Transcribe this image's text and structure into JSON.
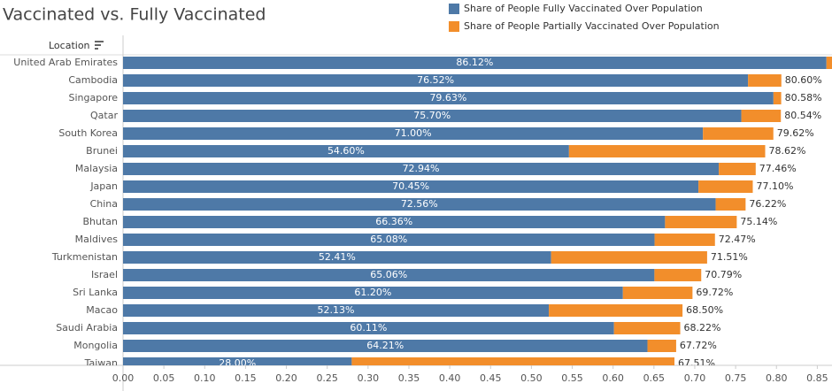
{
  "chart_data": {
    "type": "stacked-bar-horizontal",
    "title": "Vaccinated vs. Fully Vaccinated",
    "y_axis_title": "Location",
    "categories": [
      "United Arab Emirates",
      "Cambodia",
      "Singapore",
      "Qatar",
      "South Korea",
      "Brunei",
      "Malaysia",
      "Japan",
      "China",
      "Bhutan",
      "Maldives",
      "Turkmenistan",
      "Israel",
      "Sri Lanka",
      "Macao",
      "Saudi Arabia",
      "Mongolia",
      "Taiwan"
    ],
    "series": [
      {
        "name": "Share of People Fully Vaccinated Over Population",
        "color": "#4e79a7",
        "values": [
          0.8612,
          0.7652,
          0.7963,
          0.757,
          0.71,
          0.546,
          0.7294,
          0.7045,
          0.7256,
          0.6636,
          0.6508,
          0.5241,
          0.6506,
          0.612,
          0.5213,
          0.6011,
          0.6421,
          0.28
        ],
        "value_labels": [
          "86.12%",
          "76.52%",
          "79.63%",
          "75.70%",
          "71.00%",
          "54.60%",
          "72.94%",
          "70.45%",
          "72.56%",
          "66.36%",
          "65.08%",
          "52.41%",
          "65.06%",
          "61.20%",
          "52.13%",
          "60.11%",
          "64.21%",
          "28.00%"
        ]
      },
      {
        "name": "Share of People Partially Vaccinated Over Population",
        "color": "#f28e2b",
        "values": [
          0.01,
          0.0408,
          0.0095,
          0.0484,
          0.0862,
          0.2402,
          0.0452,
          0.0665,
          0.0366,
          0.0878,
          0.0739,
          0.191,
          0.0573,
          0.0852,
          0.1637,
          0.0811,
          0.0351,
          0.3951
        ]
      }
    ],
    "totals": {
      "values": [
        null,
        0.806,
        0.8058,
        0.8054,
        0.7962,
        0.7862,
        0.7746,
        0.771,
        0.7622,
        0.7514,
        0.7247,
        0.7151,
        0.7079,
        0.6972,
        0.685,
        0.6822,
        0.6772,
        0.6751
      ],
      "value_labels": [
        null,
        "80.60%",
        "80.58%",
        "80.54%",
        "79.62%",
        "78.62%",
        "77.46%",
        "77.10%",
        "76.22%",
        "75.14%",
        "72.47%",
        "71.51%",
        "70.79%",
        "69.72%",
        "68.50%",
        "68.22%",
        "67.72%",
        "67.51%"
      ]
    },
    "xlim": [
      0,
      0.868
    ],
    "xticks": [
      {
        "value": 0,
        "label": "0.00"
      },
      {
        "value": 0.05,
        "label": "0.05"
      },
      {
        "value": 0.1,
        "label": "0.10"
      },
      {
        "value": 0.15,
        "label": "0.15"
      },
      {
        "value": 0.2,
        "label": "0.20"
      },
      {
        "value": 0.25,
        "label": "0.25"
      },
      {
        "value": 0.3,
        "label": "0.30"
      },
      {
        "value": 0.35,
        "label": "0.35"
      },
      {
        "value": 0.4,
        "label": "0.40"
      },
      {
        "value": 0.45,
        "label": "0.45"
      },
      {
        "value": 0.5,
        "label": "0.50"
      },
      {
        "value": 0.55,
        "label": "0.55"
      },
      {
        "value": 0.6,
        "label": "0.60"
      },
      {
        "value": 0.65,
        "label": "0.65"
      },
      {
        "value": 0.7,
        "label": "0.70"
      },
      {
        "value": 0.75,
        "label": "0.75"
      },
      {
        "value": 0.8,
        "label": "0.80"
      },
      {
        "value": 0.85,
        "label": "0.85"
      }
    ]
  }
}
